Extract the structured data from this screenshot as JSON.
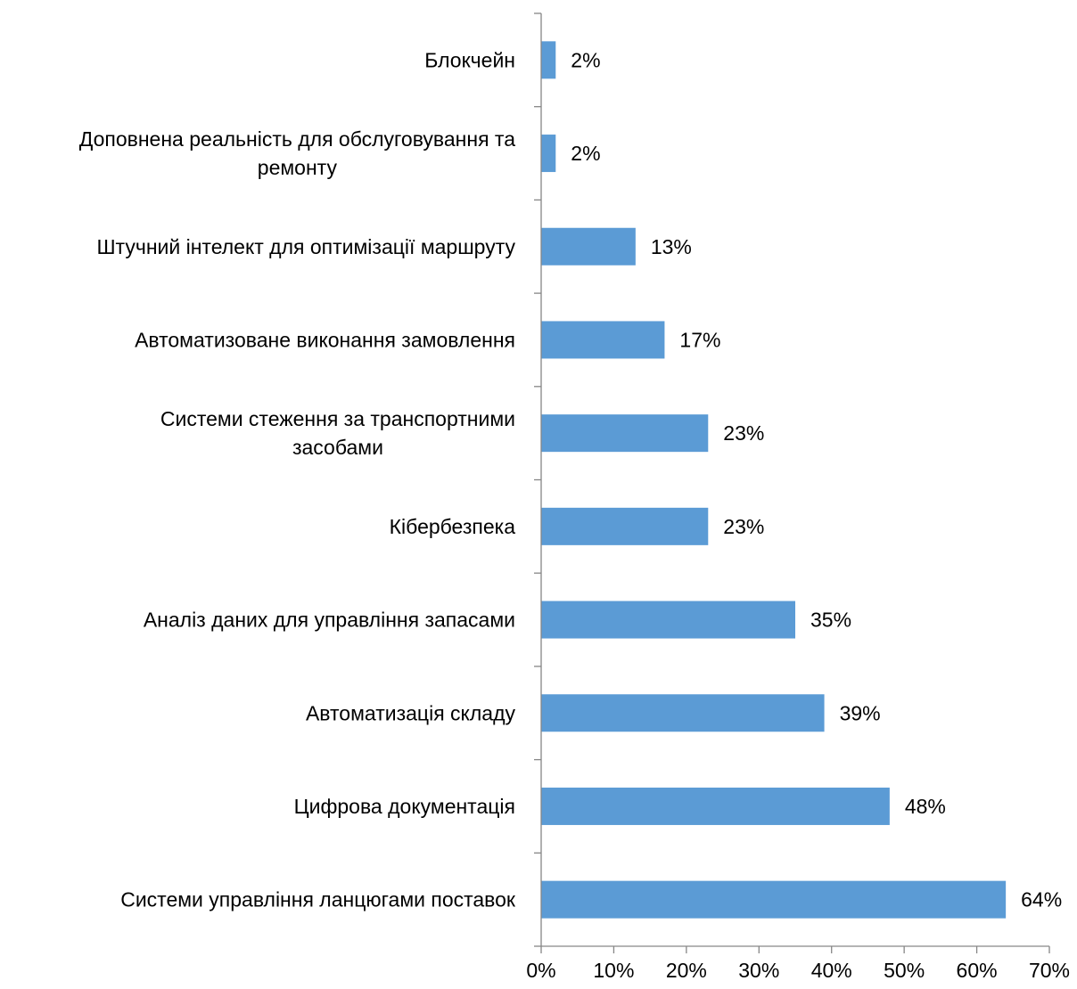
{
  "chart_data": {
    "type": "bar",
    "orientation": "horizontal",
    "categories": [
      "Блокчейн",
      "Доповнена реальність для обслуговування та ремонту",
      "Штучний інтелект для оптимізації маршруту",
      "Автоматизоване виконання замовлення",
      "Системи стеження за транспортними засобами",
      "Кібербезпека",
      "Аналіз даних для управління запасами",
      "Автоматизація складу",
      "Цифрова документація",
      "Системи управління ланцюгами поставок"
    ],
    "category_lines": [
      [
        "Блокчейн"
      ],
      [
        "Доповнена реальність для обслуговування та",
        "ремонту"
      ],
      [
        "Штучний інтелект для оптимізації маршруту"
      ],
      [
        "Автоматизоване виконання замовлення"
      ],
      [
        "Системи стеження за транспортними",
        "засобами"
      ],
      [
        "Кібербезпека"
      ],
      [
        "Аналіз даних для управління запасами"
      ],
      [
        "Автоматизація складу"
      ],
      [
        "Цифрова документація"
      ],
      [
        "Системи управління ланцюгами поставок"
      ]
    ],
    "values": [
      2,
      2,
      13,
      17,
      23,
      23,
      35,
      39,
      48,
      64
    ],
    "value_labels": [
      "2%",
      "2%",
      "13%",
      "17%",
      "23%",
      "23%",
      "35%",
      "39%",
      "48%",
      "64%"
    ],
    "x_ticks": [
      "0%",
      "10%",
      "20%",
      "30%",
      "40%",
      "50%",
      "60%",
      "70%"
    ],
    "xlim": [
      0,
      70
    ],
    "title": "",
    "xlabel": "",
    "ylabel": "",
    "grid": false,
    "legend": "none",
    "bar_color": "#5b9bd5",
    "axis_color": "#868686"
  }
}
